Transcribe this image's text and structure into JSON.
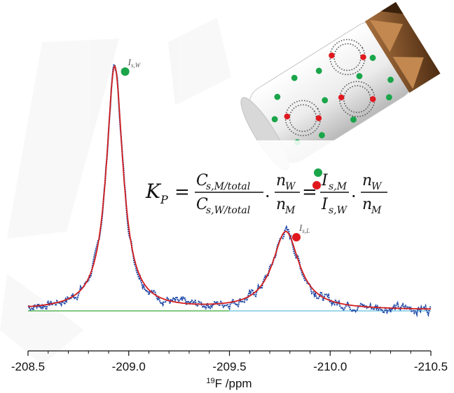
{
  "chart_data": {
    "type": "line",
    "xlabel_sup": "19",
    "xlabel": "F /ppm",
    "xlim": [
      -208.5,
      -210.5
    ],
    "ylim": [
      0,
      1
    ],
    "grid": false,
    "ticks": [
      "-208.5",
      "-209.0",
      "-209.5",
      "-210.0",
      "-210.5"
    ],
    "tick_values": [
      -208.5,
      -209.0,
      -209.5,
      -210.0,
      -210.5
    ],
    "peaks": [
      {
        "label_main": "I",
        "label_sub": "s,W",
        "marker_color": "#1aa54a",
        "position_ppm": -208.93,
        "height": 1.0,
        "width": 0.05
      },
      {
        "label_main": "I",
        "label_sub": "s,L",
        "marker_color": "#e0191f",
        "position_ppm": -209.78,
        "height": 0.32,
        "width": 0.08
      }
    ],
    "series": [
      {
        "role": "measured spectrum",
        "color": "#1f4aa8"
      },
      {
        "role": "fit",
        "color": "#d41f1f"
      },
      {
        "role": "baseline component 1",
        "color": "#5cb85c"
      },
      {
        "role": "baseline component 2",
        "color": "#7ec8e3"
      }
    ]
  },
  "equation": {
    "lhs": "K",
    "lhs_sub": "P",
    "frac1_num": "C",
    "frac1_num_sub": "s,M/total",
    "frac1_den": "C",
    "frac1_den_sub": "s,W/total",
    "frac2_num": "n",
    "frac2_num_sub": "W",
    "frac2_den": "n",
    "frac2_den_sub": "M",
    "frac3_num": "I",
    "frac3_num_sub": "s,M",
    "frac3_den": "I",
    "frac3_den_sub": "s,W",
    "equals": "=",
    "dot": "·"
  },
  "colors": {
    "water_dot": "#1aa54a",
    "membrane_dot": "#e0191f",
    "rotor_body": "#e9e9e9",
    "rotor_cap": "#7a4a22"
  },
  "icons": [
    "nmr-rotor-illustration"
  ]
}
